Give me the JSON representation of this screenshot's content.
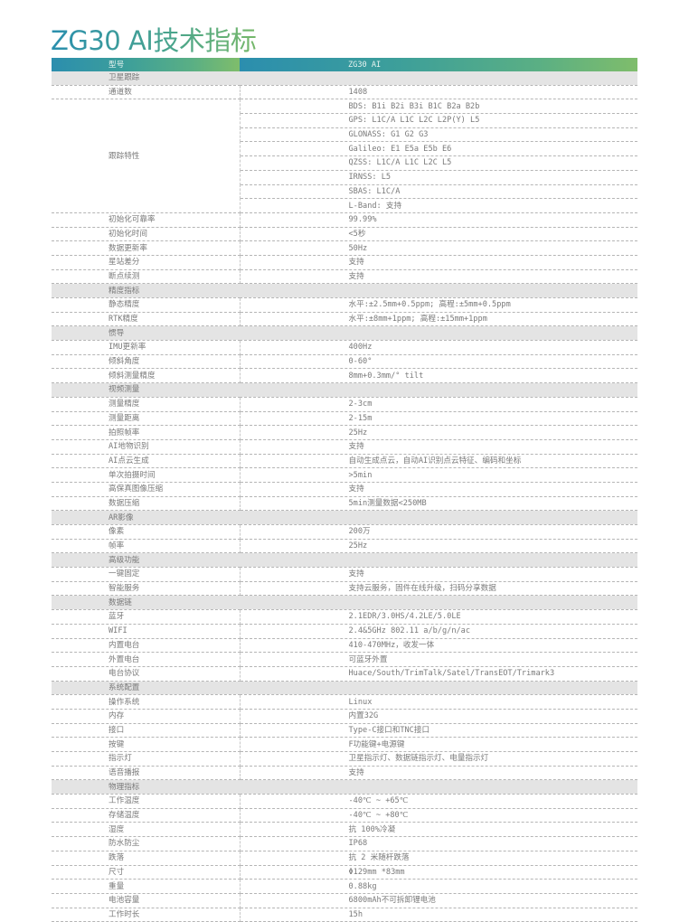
{
  "title": "ZG30 AI技术指标",
  "colors": {
    "header_gradient_start": "#2b8eae",
    "header_gradient_end": "#7fbd6b",
    "section_bg": "#e4e4e4"
  },
  "header": {
    "label": "型号",
    "value": "ZG30 AI"
  },
  "sections": [
    {
      "name": "卫星跟踪",
      "rows": [
        {
          "label": "通道数",
          "values": [
            "1408"
          ]
        },
        {
          "label": "跟踪特性",
          "values": [
            "BDS: B1i B2i B3i B1C B2a B2b",
            "GPS: L1C/A L1C L2C L2P(Y) L5",
            "GLONASS: G1 G2 G3",
            "Galileo: E1 E5a E5b E6",
            "QZSS: L1C/A L1C L2C L5",
            "IRNSS: L5",
            "SBAS: L1C/A",
            "L-Band: 支持"
          ]
        },
        {
          "label": "初始化可靠率",
          "values": [
            "99.99%"
          ]
        },
        {
          "label": "初始化时间",
          "values": [
            "<5秒"
          ]
        },
        {
          "label": "数据更新率",
          "values": [
            "50Hz"
          ]
        },
        {
          "label": "星站差分",
          "values": [
            "支持"
          ]
        },
        {
          "label": "断点续测",
          "values": [
            "支持"
          ]
        }
      ]
    },
    {
      "name": "精度指标",
      "rows": [
        {
          "label": "静态精度",
          "values": [
            "水平:±2.5mm+0.5ppm; 高程:±5mm+0.5ppm"
          ]
        },
        {
          "label": "RTK精度",
          "values": [
            "水平:±8mm+1ppm; 高程:±15mm+1ppm"
          ]
        }
      ]
    },
    {
      "name": "惯导",
      "rows": [
        {
          "label": "IMU更新率",
          "values": [
            "400Hz"
          ]
        },
        {
          "label": "倾斜角度",
          "values": [
            "0-60°"
          ]
        },
        {
          "label": "倾斜测量精度",
          "values": [
            "8mm+0.3mm/° tilt"
          ]
        }
      ]
    },
    {
      "name": "视频测量",
      "rows": [
        {
          "label": "测量精度",
          "values": [
            "2-3cm"
          ]
        },
        {
          "label": "测量距离",
          "values": [
            "2-15m"
          ]
        },
        {
          "label": "拍照帧率",
          "values": [
            "25Hz"
          ]
        },
        {
          "label": "AI地物识别",
          "values": [
            "支持"
          ]
        },
        {
          "label": "AI点云生成",
          "values": [
            "自动生成点云，自动AI识别点云特征、编码和坐标"
          ]
        },
        {
          "label": "单次拍摄时间",
          "values": [
            ">5min"
          ]
        },
        {
          "label": "高保真图像压缩",
          "values": [
            "支持"
          ]
        },
        {
          "label": "数据压缩",
          "values": [
            "5min测量数据<250MB"
          ]
        }
      ]
    },
    {
      "name": "AR影像",
      "rows": [
        {
          "label": "像素",
          "values": [
            "200万"
          ]
        },
        {
          "label": "帧率",
          "values": [
            "25Hz"
          ]
        }
      ]
    },
    {
      "name": "高级功能",
      "rows": [
        {
          "label": "一键固定",
          "values": [
            "支持"
          ]
        },
        {
          "label": "智能服务",
          "values": [
            "支持云服务，固件在线升级，扫码分享数据"
          ]
        }
      ]
    },
    {
      "name": "数据链",
      "rows": [
        {
          "label": "蓝牙",
          "values": [
            "2.1EDR/3.0HS/4.2LE/5.0LE"
          ]
        },
        {
          "label": "WIFI",
          "values": [
            "2.4&5GHz  802.11 a/b/g/n/ac"
          ]
        },
        {
          "label": "内置电台",
          "values": [
            "410-470MHz，收发一体"
          ]
        },
        {
          "label": "外置电台",
          "values": [
            "可蓝牙外置"
          ]
        },
        {
          "label": "电台协议",
          "values": [
            "Huace/South/TrimTalk/Satel/TransEOT/Trimark3"
          ]
        }
      ]
    },
    {
      "name": "系统配置",
      "rows": [
        {
          "label": "操作系统",
          "values": [
            "Linux"
          ]
        },
        {
          "label": "内存",
          "values": [
            "内置32G"
          ]
        },
        {
          "label": "接口",
          "values": [
            "Type-C接口和TNC接口"
          ]
        },
        {
          "label": "按键",
          "values": [
            "F功能键+电源键"
          ]
        },
        {
          "label": "指示灯",
          "values": [
            "卫星指示灯、数据链指示灯、电量指示灯"
          ]
        },
        {
          "label": "语音播报",
          "values": [
            "支持"
          ]
        }
      ]
    },
    {
      "name": "物理指标",
      "rows": [
        {
          "label": "工作温度",
          "values": [
            "-40℃ ~ +65℃"
          ]
        },
        {
          "label": "存储温度",
          "values": [
            "-40℃ ~ +80℃"
          ]
        },
        {
          "label": "湿度",
          "values": [
            "抗 100%冷凝"
          ]
        },
        {
          "label": "防水防尘",
          "values": [
            "IP68"
          ]
        },
        {
          "label": "跌落",
          "values": [
            "抗 2 米随杆跌落"
          ]
        },
        {
          "label": "尺寸",
          "values": [
            "Φ129mm *83mm"
          ]
        },
        {
          "label": "重量",
          "values": [
            "0.88kg"
          ]
        },
        {
          "label": "电池容量",
          "values": [
            "6800mAh不可拆卸锂电池"
          ]
        },
        {
          "label": "工作时长",
          "values": [
            "15h"
          ]
        }
      ]
    }
  ]
}
